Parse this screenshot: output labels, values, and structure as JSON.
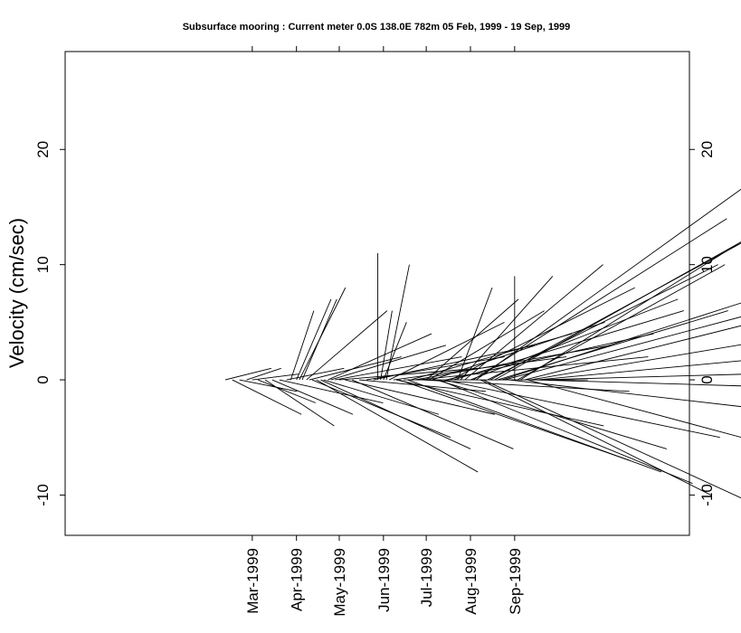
{
  "chart_data": {
    "type": "stick-plot",
    "title": "Subsurface mooring : Current meter  0.0S 138.0E   782m  05 Feb, 1999 - 19 Sep, 1999",
    "ylabel": "Velocity (cm/sec)",
    "ylim": [
      -13.5,
      28.5
    ],
    "yticks": [
      {
        "value": -10,
        "label": "-10"
      },
      {
        "value": 0,
        "label": "0"
      },
      {
        "value": 10,
        "label": "10"
      },
      {
        "value": 20,
        "label": "20"
      }
    ],
    "xticks": [
      {
        "label": "Mar-1999"
      },
      {
        "label": "Apr-1999"
      },
      {
        "label": "May-1999"
      },
      {
        "label": "Jun-1999"
      },
      {
        "label": "Jul-1999"
      },
      {
        "label": "Aug-1999"
      },
      {
        "label": "Sep-1999"
      }
    ],
    "sticks": [
      {
        "date": "1999-02-05",
        "u": 0,
        "v": 0
      },
      {
        "date": "1999-02-10",
        "u": 4,
        "v": 1
      },
      {
        "date": "1999-02-15",
        "u": 6,
        "v": -3
      },
      {
        "date": "1999-02-20",
        "u": 5,
        "v": -1
      },
      {
        "date": "1999-02-25",
        "u": 3,
        "v": 1
      },
      {
        "date": "1999-03-01",
        "u": 4,
        "v": 0.5
      },
      {
        "date": "1999-03-05",
        "u": 5,
        "v": -2
      },
      {
        "date": "1999-03-10",
        "u": 6,
        "v": -4
      },
      {
        "date": "1999-03-15",
        "u": 7,
        "v": -3
      },
      {
        "date": "1999-03-20",
        "u": 9,
        "v": -2
      },
      {
        "date": "1999-03-25",
        "u": 5,
        "v": 1
      },
      {
        "date": "1999-03-28",
        "u": 2,
        "v": 6
      },
      {
        "date": "1999-04-01",
        "u": 3,
        "v": 7
      },
      {
        "date": "1999-04-03",
        "u": 4,
        "v": 8
      },
      {
        "date": "1999-04-05",
        "u": 3,
        "v": 7
      },
      {
        "date": "1999-04-08",
        "u": 7,
        "v": 6
      },
      {
        "date": "1999-04-10",
        "u": 8,
        "v": 2
      },
      {
        "date": "1999-04-12",
        "u": 12,
        "v": -5
      },
      {
        "date": "1999-04-15",
        "u": 14,
        "v": -8
      },
      {
        "date": "1999-04-18",
        "u": 13,
        "v": -6
      },
      {
        "date": "1999-04-20",
        "u": 10,
        "v": -3
      },
      {
        "date": "1999-04-23",
        "u": 9,
        "v": 4
      },
      {
        "date": "1999-04-25",
        "u": 10,
        "v": 3
      },
      {
        "date": "1999-04-28",
        "u": 11,
        "v": 2
      },
      {
        "date": "1999-05-01",
        "u": 12,
        "v": 1
      },
      {
        "date": "1999-05-05",
        "u": 13,
        "v": -3
      },
      {
        "date": "1999-05-10",
        "u": 14,
        "v": -6
      },
      {
        "date": "1999-05-15",
        "u": 11,
        "v": -1
      },
      {
        "date": "1999-05-20",
        "u": 12,
        "v": 2
      },
      {
        "date": "1999-05-25",
        "u": 14,
        "v": 3
      },
      {
        "date": "1999-05-28",
        "u": 0,
        "v": 11
      },
      {
        "date": "1999-05-30",
        "u": 1,
        "v": 6
      },
      {
        "date": "1999-06-01",
        "u": 2,
        "v": 5
      },
      {
        "date": "1999-06-03",
        "u": 2,
        "v": 10
      },
      {
        "date": "1999-06-05",
        "u": 10,
        "v": 5
      },
      {
        "date": "1999-06-08",
        "u": 15,
        "v": 2
      },
      {
        "date": "1999-06-10",
        "u": 18,
        "v": -4
      },
      {
        "date": "1999-06-12",
        "u": 20,
        "v": -7
      },
      {
        "date": "1999-06-15",
        "u": 16,
        "v": 0
      },
      {
        "date": "1999-06-18",
        "u": 22,
        "v": -8
      },
      {
        "date": "1999-06-20",
        "u": 14,
        "v": 4
      },
      {
        "date": "1999-06-23",
        "u": 17,
        "v": 3
      },
      {
        "date": "1999-06-25",
        "u": 20,
        "v": 2
      },
      {
        "date": "1999-06-28",
        "u": 18,
        "v": -1
      },
      {
        "date": "1999-07-01",
        "u": 8,
        "v": 7
      },
      {
        "date": "1999-07-03",
        "u": 10,
        "v": 6
      },
      {
        "date": "1999-07-05",
        "u": 15,
        "v": 5
      },
      {
        "date": "1999-07-08",
        "u": 20,
        "v": -6
      },
      {
        "date": "1999-07-10",
        "u": 22,
        "v": -9
      },
      {
        "date": "1999-07-13",
        "u": 24,
        "v": -5
      },
      {
        "date": "1999-07-15",
        "u": 18,
        "v": 4
      },
      {
        "date": "1999-07-18",
        "u": 16,
        "v": 8
      },
      {
        "date": "1999-07-20",
        "u": 20,
        "v": 6
      },
      {
        "date": "1999-07-23",
        "u": 3,
        "v": 8
      },
      {
        "date": "1999-07-25",
        "u": 8,
        "v": 9
      },
      {
        "date": "1999-07-28",
        "u": 12,
        "v": 10
      },
      {
        "date": "1999-08-01",
        "u": 18,
        "v": 7
      },
      {
        "date": "1999-08-03",
        "u": 22,
        "v": 14
      },
      {
        "date": "1999-08-05",
        "u": 25,
        "v": 18
      },
      {
        "date": "1999-08-08",
        "u": 20,
        "v": -10
      },
      {
        "date": "1999-08-10",
        "u": 24,
        "v": -11
      },
      {
        "date": "1999-08-13",
        "u": 20,
        "v": 10
      },
      {
        "date": "1999-08-15",
        "u": 22,
        "v": 12
      },
      {
        "date": "1999-08-18",
        "u": 25,
        "v": 14
      },
      {
        "date": "1999-08-20",
        "u": 20,
        "v": 6
      },
      {
        "date": "1999-08-23",
        "u": 28,
        "v": 9
      },
      {
        "date": "1999-08-25",
        "u": 30,
        "v": 8
      },
      {
        "date": "1999-08-28",
        "u": 26,
        "v": -3
      },
      {
        "date": "1999-09-01",
        "u": 0,
        "v": 9
      },
      {
        "date": "1999-09-03",
        "u": 18,
        "v": 10
      },
      {
        "date": "1999-09-05",
        "u": 24,
        "v": 15
      },
      {
        "date": "1999-09-08",
        "u": 28,
        "v": 7
      },
      {
        "date": "1999-09-10",
        "u": 26,
        "v": -7
      },
      {
        "date": "1999-09-12",
        "u": 30,
        "v": 5
      },
      {
        "date": "1999-09-15",
        "u": 34,
        "v": -1
      },
      {
        "date": "1999-09-17",
        "u": 32,
        "v": 3
      },
      {
        "date": "1999-09-19",
        "u": 36,
        "v": 1
      }
    ]
  }
}
